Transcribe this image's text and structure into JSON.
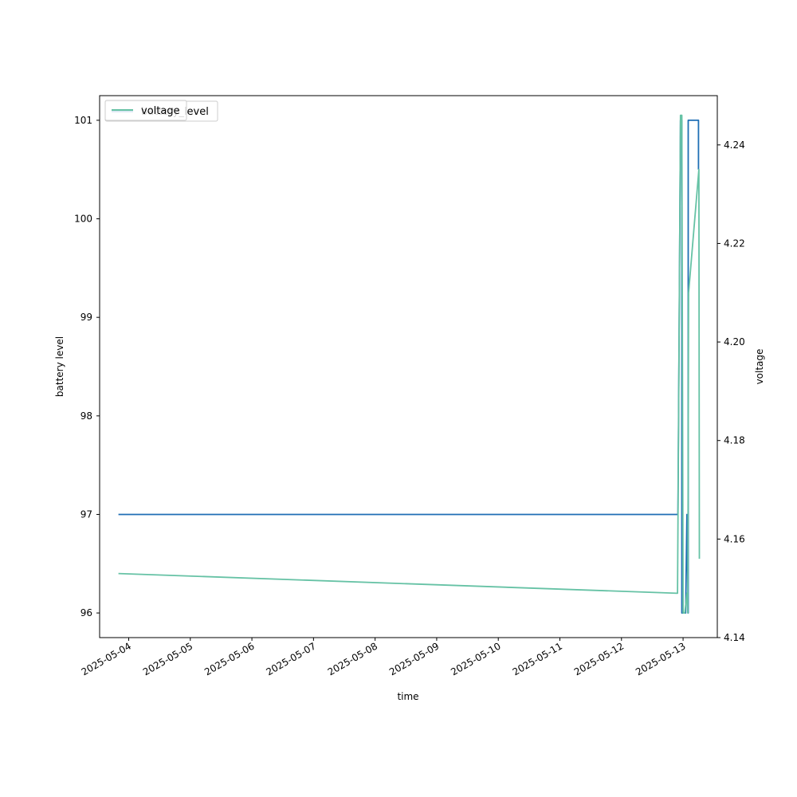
{
  "chart_data": {
    "type": "line",
    "title": "",
    "xlabel": "time",
    "ylabel": "battery level",
    "y2label": "voltage",
    "xlim": [
      "2025-05-03T12:40",
      "2025-05-13T13:20"
    ],
    "ylim": [
      95.75,
      101.25
    ],
    "y2lim": [
      4.14,
      4.25
    ],
    "x_ticks": [
      "2025-05-04",
      "2025-05-05",
      "2025-05-06",
      "2025-05-07",
      "2025-05-08",
      "2025-05-09",
      "2025-05-10",
      "2025-05-11",
      "2025-05-12",
      "2025-05-13"
    ],
    "y_ticks": [
      96,
      97,
      98,
      99,
      100,
      101
    ],
    "y2_ticks": [
      "4.14",
      "4.16",
      "4.18",
      "4.20",
      "4.22",
      "4.24"
    ],
    "grid": false,
    "legend_placement": "upper-left",
    "series": [
      {
        "name": "battery_level",
        "axis": "left",
        "color": "#1f6fb5",
        "x": [
          "2025-05-03T20:00",
          "2025-05-12T22:00",
          "2025-05-12T23:00",
          "2025-05-12T23:30",
          "2025-05-12T23:30",
          "2025-05-13T01:00",
          "2025-05-13T01:30",
          "2025-05-13T02:00",
          "2025-05-13T02:00",
          "2025-05-13T06:00",
          "2025-05-13T06:00"
        ],
        "values": [
          97,
          97,
          101,
          101,
          96,
          96,
          97,
          96,
          101,
          101,
          100.5
        ]
      },
      {
        "name": "voltage",
        "axis": "right",
        "color": "#66c2a5",
        "x": [
          "2025-05-03T20:00",
          "2025-05-12T21:50",
          "2025-05-12T23:00",
          "2025-05-12T23:30",
          "2025-05-13T00:00",
          "2025-05-13T00:40",
          "2025-05-13T01:30",
          "2025-05-13T01:50",
          "2025-05-13T02:10",
          "2025-05-13T06:10",
          "2025-05-13T06:20"
        ],
        "values": [
          4.153,
          4.149,
          4.246,
          4.246,
          4.145,
          4.145,
          4.149,
          4.145,
          4.21,
          4.235,
          4.156
        ]
      }
    ]
  },
  "legend": {
    "voltage_label": "voltage",
    "battery_level_label": "battery_level"
  }
}
